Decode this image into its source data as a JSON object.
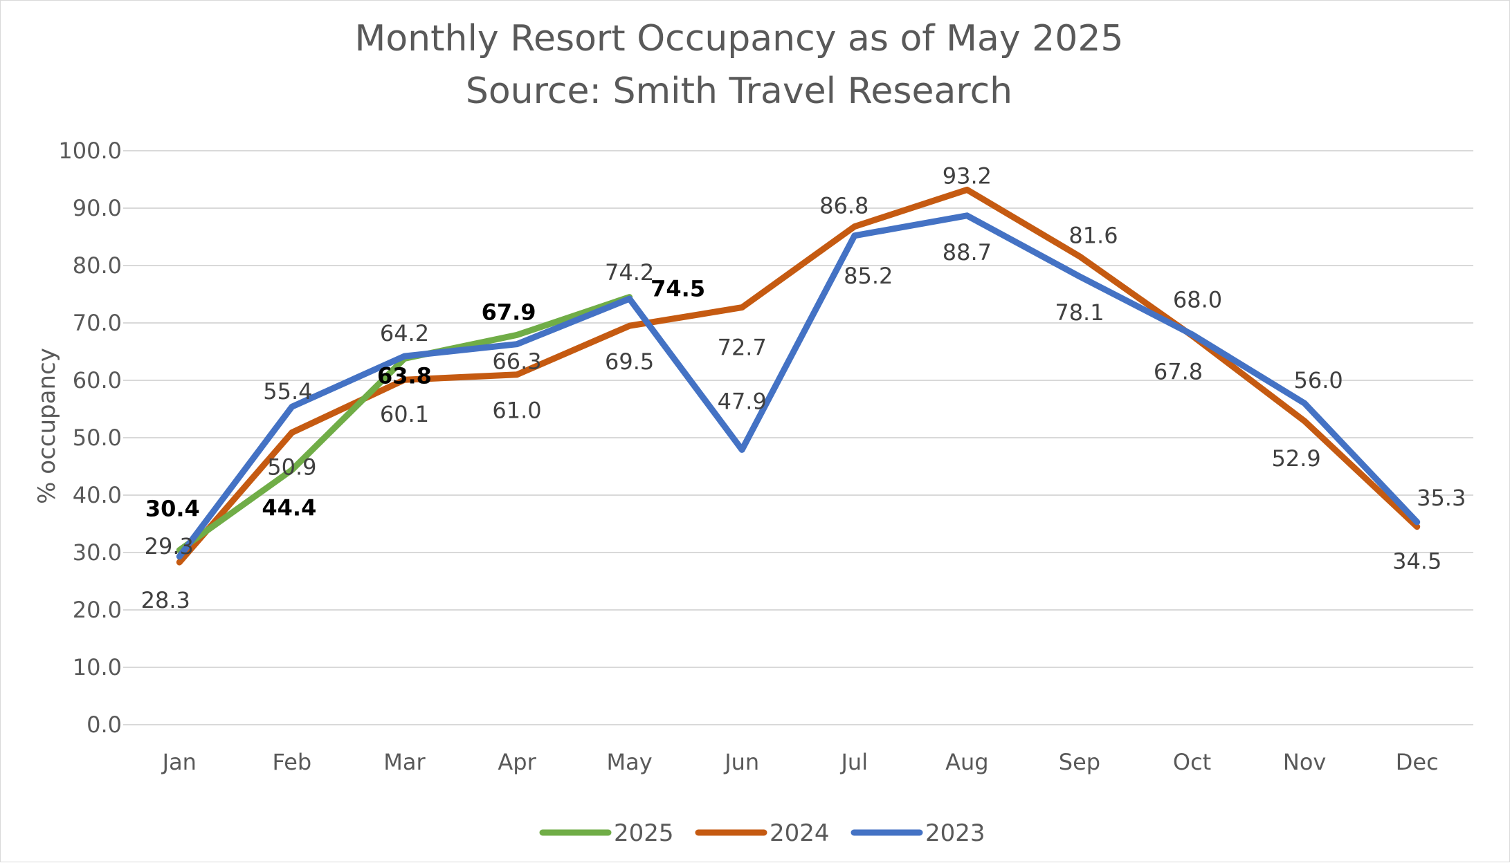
{
  "chart_data": {
    "type": "line",
    "title": "Monthly Resort Occupancy as of May 2025",
    "subtitle": "Source: Smith Travel Research",
    "xlabel": "",
    "ylabel": "% occupancy",
    "ylim": [
      0,
      100
    ],
    "yticks": [
      "0.0",
      "10.0",
      "20.0",
      "30.0",
      "40.0",
      "50.0",
      "60.0",
      "70.0",
      "80.0",
      "90.0",
      "100.0"
    ],
    "categories": [
      "Jan",
      "Feb",
      "Mar",
      "Apr",
      "May",
      "Jun",
      "Jul",
      "Aug",
      "Sep",
      "Oct",
      "Nov",
      "Dec"
    ],
    "grid": true,
    "legend_position": "bottom",
    "series": [
      {
        "name": "2025",
        "color": "#70ad47",
        "values": [
          30.4,
          44.4,
          63.8,
          67.9,
          74.5,
          null,
          null,
          null,
          null,
          null,
          null,
          null
        ],
        "labels": [
          "30.4",
          "44.4",
          "63.8",
          "67.9",
          "74.5",
          "",
          "",
          "",
          "",
          "",
          "",
          ""
        ],
        "bold_labels": true
      },
      {
        "name": "2024",
        "color": "#c55a11",
        "values": [
          28.3,
          50.9,
          60.1,
          61.0,
          69.5,
          72.7,
          86.8,
          93.2,
          81.6,
          67.8,
          52.9,
          34.5
        ],
        "labels": [
          "28.3",
          "50.9",
          "60.1",
          "61.0",
          "69.5",
          "72.7",
          "86.8",
          "93.2",
          "81.6",
          "67.8",
          "52.9",
          "34.5"
        ],
        "bold_labels": false
      },
      {
        "name": "2023",
        "color": "#4472c4",
        "values": [
          29.3,
          55.4,
          64.2,
          66.3,
          74.2,
          47.9,
          85.2,
          88.7,
          78.1,
          68.0,
          56.0,
          35.3
        ],
        "labels": [
          "29.3",
          "55.4",
          "64.2",
          "66.3",
          "74.2",
          "47.9",
          "85.2",
          "88.7",
          "78.1",
          "68.0",
          "56.0",
          "35.3"
        ],
        "bold_labels": false
      }
    ]
  }
}
